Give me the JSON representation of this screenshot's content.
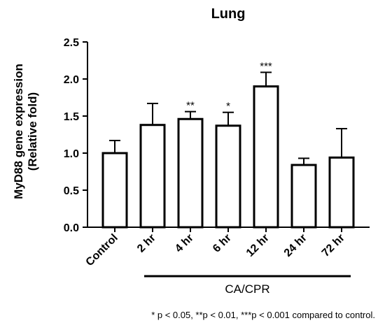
{
  "chart_data": {
    "type": "bar",
    "title": "Lung",
    "ylabel_line1": "MyD88 gene expression",
    "ylabel_line2": "(Relative fold)",
    "xlabel": "",
    "categories": [
      "Control",
      "2 hr",
      "4 hr",
      "6 hr",
      "12 hr",
      "24 hr",
      "72 hr"
    ],
    "values": [
      1.0,
      1.38,
      1.46,
      1.37,
      1.9,
      0.84,
      0.94
    ],
    "error_upper": [
      1.17,
      1.67,
      1.56,
      1.55,
      2.09,
      0.93,
      1.33
    ],
    "significance": [
      "",
      "",
      "**",
      "*",
      "***",
      "",
      ""
    ],
    "ylim": [
      0,
      2.5
    ],
    "yticks": [
      "0.0",
      "0.5",
      "1.0",
      "1.5",
      "2.0",
      "2.5"
    ],
    "ytick_values": [
      0,
      0.5,
      1.0,
      1.5,
      2.0,
      2.5
    ],
    "group_label": "CA/CPR",
    "group_span": [
      "2 hr",
      "72 hr"
    ],
    "footnote": "* p < 0.05, **p < 0.01, ***p < 0.001 compared to control.",
    "bar_fill": "#ffffff",
    "bar_stroke": "#000000",
    "grid": false,
    "legend": "none"
  }
}
